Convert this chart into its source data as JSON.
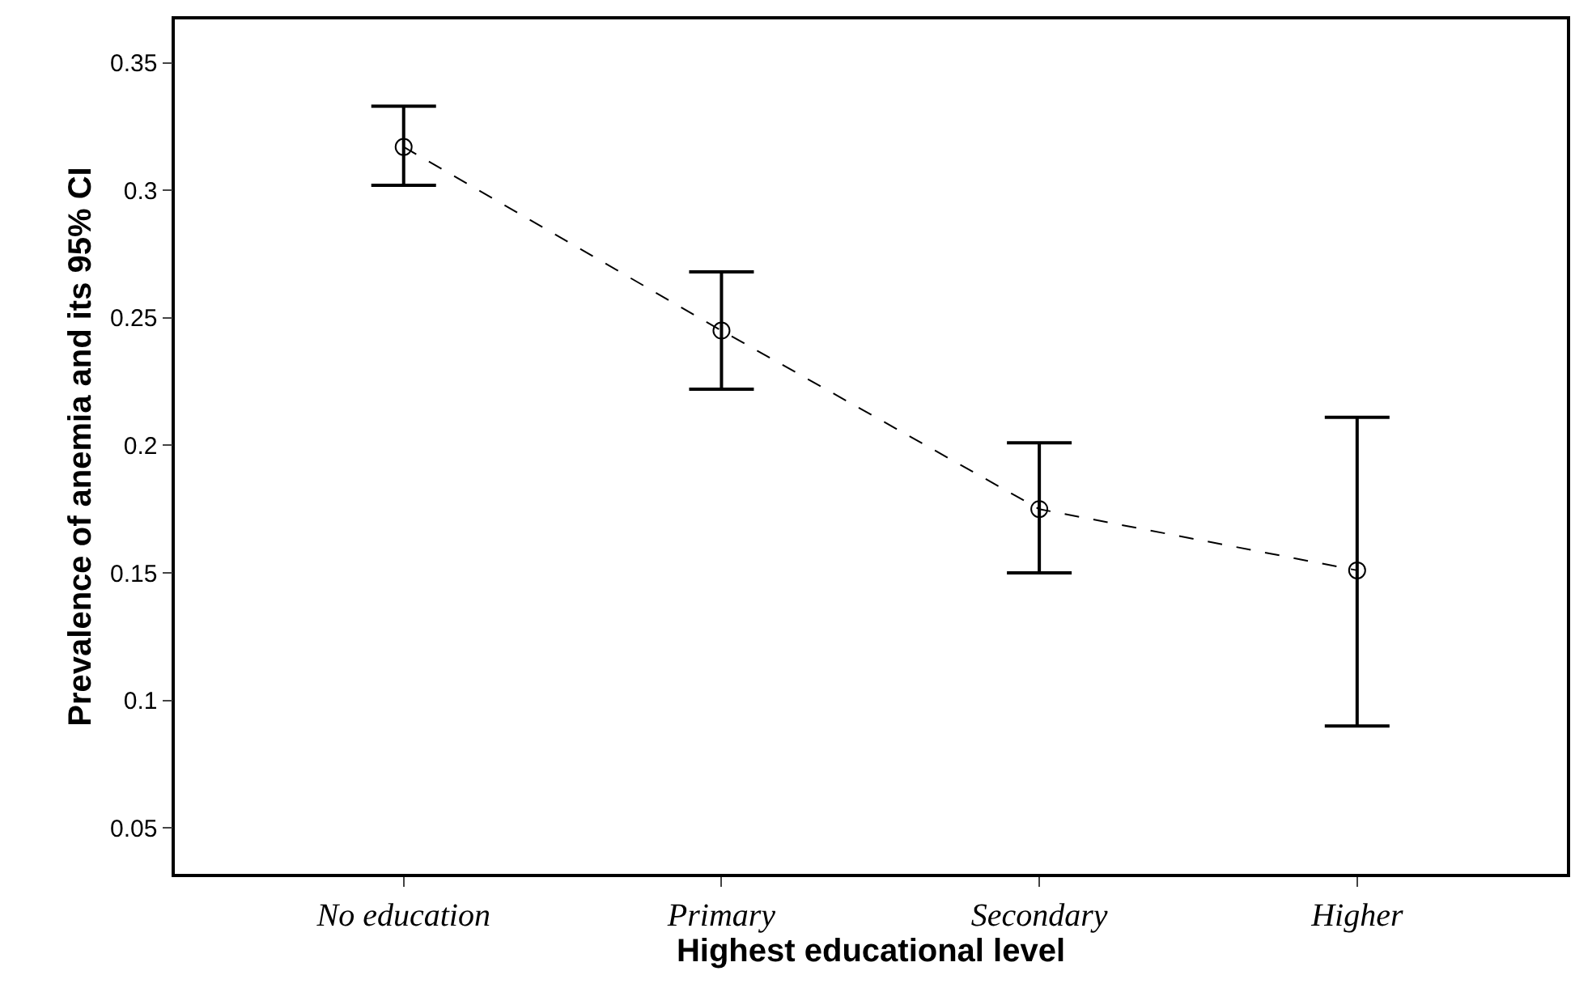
{
  "chart_data": {
    "type": "line",
    "xlabel": "Highest educational level",
    "ylabel": "Prevalence of anemia and its 95% CI",
    "categories": [
      "No education",
      "Primary",
      "Secondary",
      "Higher"
    ],
    "color": "#000000",
    "values": [
      0.317,
      0.245,
      0.175,
      0.151
    ],
    "errors": [
      [
        0.302,
        0.333
      ],
      [
        0.222,
        0.268
      ],
      [
        0.15,
        0.201
      ],
      [
        0.09,
        0.211
      ]
    ],
    "ylim": [
      0.032,
      0.367
    ],
    "yticks": [
      {
        "value": 0.05,
        "label": "0.05"
      },
      {
        "value": 0.1,
        "label": "0.1"
      },
      {
        "value": 0.15,
        "label": "0.15"
      },
      {
        "value": 0.2,
        "label": "0.2"
      },
      {
        "value": 0.25,
        "label": "0.25"
      },
      {
        "value": 0.3,
        "label": "0.3"
      },
      {
        "value": 0.35,
        "label": "0.35"
      }
    ],
    "marker": "circle",
    "line_style": "dashed"
  }
}
